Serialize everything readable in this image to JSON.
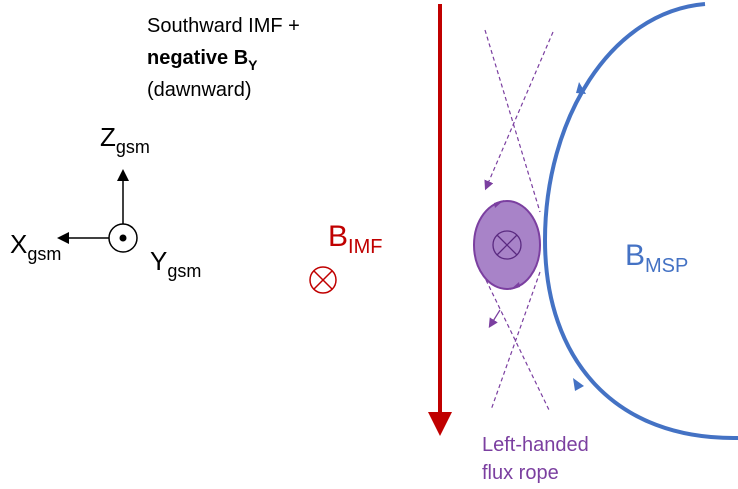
{
  "title": {
    "line1": "Southward IMF +",
    "line2": "negative B",
    "line2_sub": "Y",
    "line3": "(dawnward)"
  },
  "axes": {
    "z": {
      "label": "Z",
      "sub": "gsm"
    },
    "x": {
      "label": "X",
      "sub": "gsm"
    },
    "y": {
      "label": "Y",
      "sub": "gsm"
    }
  },
  "labels": {
    "b_imf": {
      "label": "B",
      "sub": "IMF"
    },
    "b_msp": {
      "label": "B",
      "sub": "MSP"
    },
    "flux_rope": [
      "Left-handed",
      "flux rope"
    ]
  }
}
